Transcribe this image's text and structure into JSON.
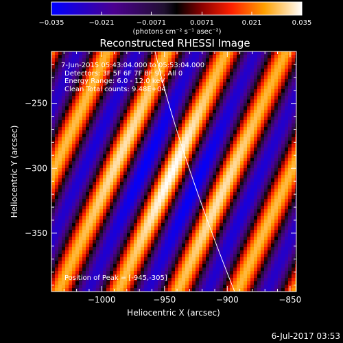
{
  "chart_data": {
    "type": "heatmap",
    "title": "Reconstructed RHESSI Image",
    "xlabel": "Heliocentric X (arcsec)",
    "ylabel": "Heliocentric Y (arcsec)",
    "xlim": [
      -1040,
      -845
    ],
    "ylim": [
      -395,
      -210
    ],
    "x_ticks": [
      -1000,
      -950,
      -900,
      -850
    ],
    "y_ticks": [
      -250,
      -300,
      -350
    ],
    "x_tick_labels": [
      "−1000",
      "−950",
      "−900",
      "−850"
    ],
    "y_tick_labels": [
      "−250",
      "−300",
      "−350"
    ],
    "colorbar": {
      "range": [
        -0.035,
        0.035
      ],
      "ticks": [
        -0.035,
        -0.021,
        -0.0071,
        0.0071,
        0.021,
        0.035
      ],
      "tick_labels": [
        "−0.035",
        "−0.021",
        "−0.0071",
        "0.0071",
        "0.021",
        "0.035"
      ],
      "label": "(photons cm⁻² s⁻¹ asec⁻²)"
    },
    "info_lines": [
      "7-Jun-2015 05:43:04.000 to 05:53:04.000",
      "Detectors: 3F 5F 6F 7F 8F 9F, All 0",
      "Energy Range: 6.0 - 12.0 keV",
      "Clean  Total counts: 9.48E+04"
    ],
    "peak_label": "Position of Peak = [-945,-305]",
    "peak": [
      -945,
      -305
    ],
    "fringe": {
      "period_arcsec": 43,
      "angle_deg": -25,
      "amplitude": 0.035
    }
  },
  "footer": {
    "timestamp": "6-Jul-2017 03:53"
  }
}
